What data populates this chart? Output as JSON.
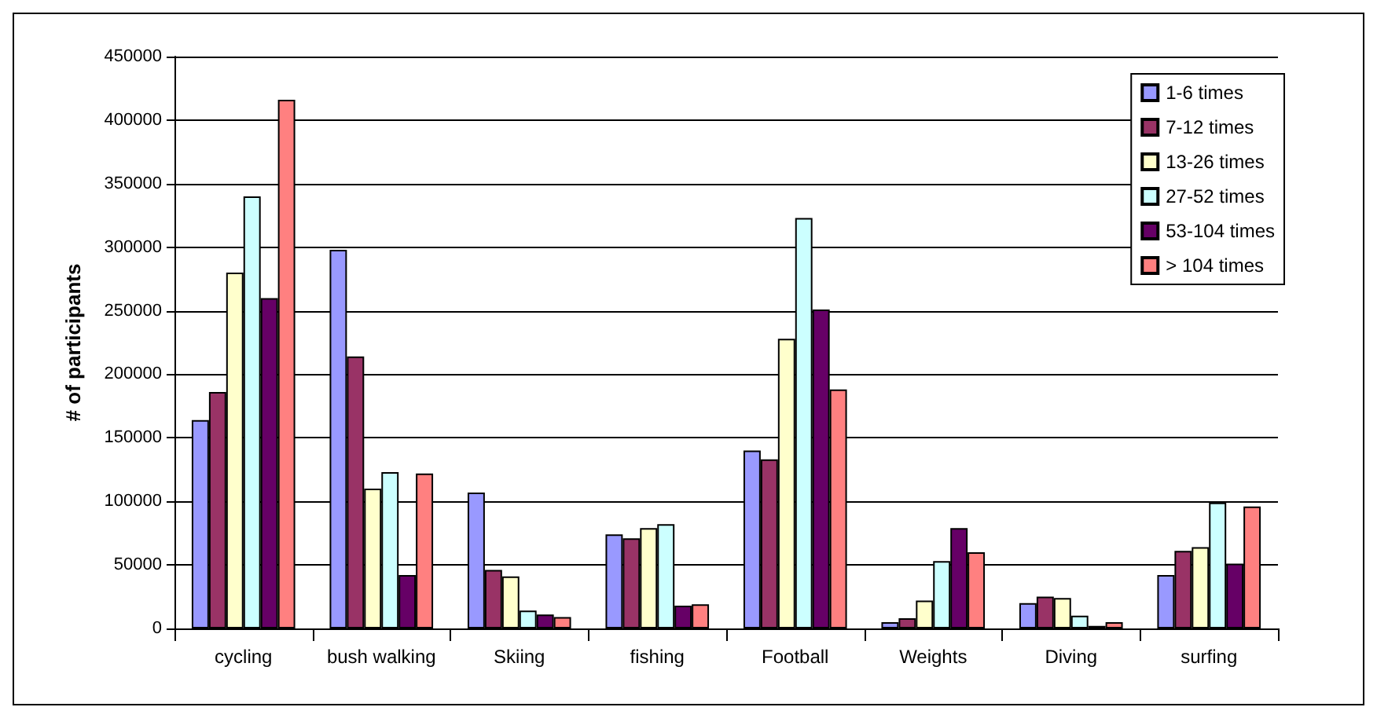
{
  "chart_data": {
    "type": "bar",
    "ylabel": "# of participants",
    "categories": [
      "cycling",
      "bush walking",
      "Skiing",
      "fishing",
      "Football",
      "Weights",
      "Diving",
      "surfing"
    ],
    "series": [
      {
        "name": "1-6 times",
        "color": "#9999ff",
        "values": [
          164000,
          298000,
          107000,
          74000,
          140000,
          5000,
          20000,
          42000
        ]
      },
      {
        "name": "7-12 times",
        "color": "#993366",
        "values": [
          186000,
          214000,
          46000,
          71000,
          133000,
          8000,
          25000,
          61000
        ]
      },
      {
        "name": "13-26 times",
        "color": "#ffffcc",
        "values": [
          280000,
          110000,
          41000,
          79000,
          228000,
          22000,
          24000,
          64000
        ]
      },
      {
        "name": "27-52 times",
        "color": "#ccffff",
        "values": [
          340000,
          123000,
          14000,
          82000,
          323000,
          53000,
          10000,
          99000
        ]
      },
      {
        "name": "53-104 times",
        "color": "#660066",
        "values": [
          260000,
          42000,
          11000,
          18000,
          251000,
          79000,
          2000,
          51000
        ]
      },
      {
        "name": "> 104 times",
        "color": "#ff8080",
        "values": [
          416000,
          122000,
          9000,
          19000,
          188000,
          60000,
          5000,
          96000
        ]
      }
    ],
    "ylim": [
      0,
      450000
    ],
    "yticks": [
      0,
      50000,
      100000,
      150000,
      200000,
      250000,
      300000,
      350000,
      400000,
      450000
    ],
    "grid": "y",
    "legend": "top right"
  }
}
